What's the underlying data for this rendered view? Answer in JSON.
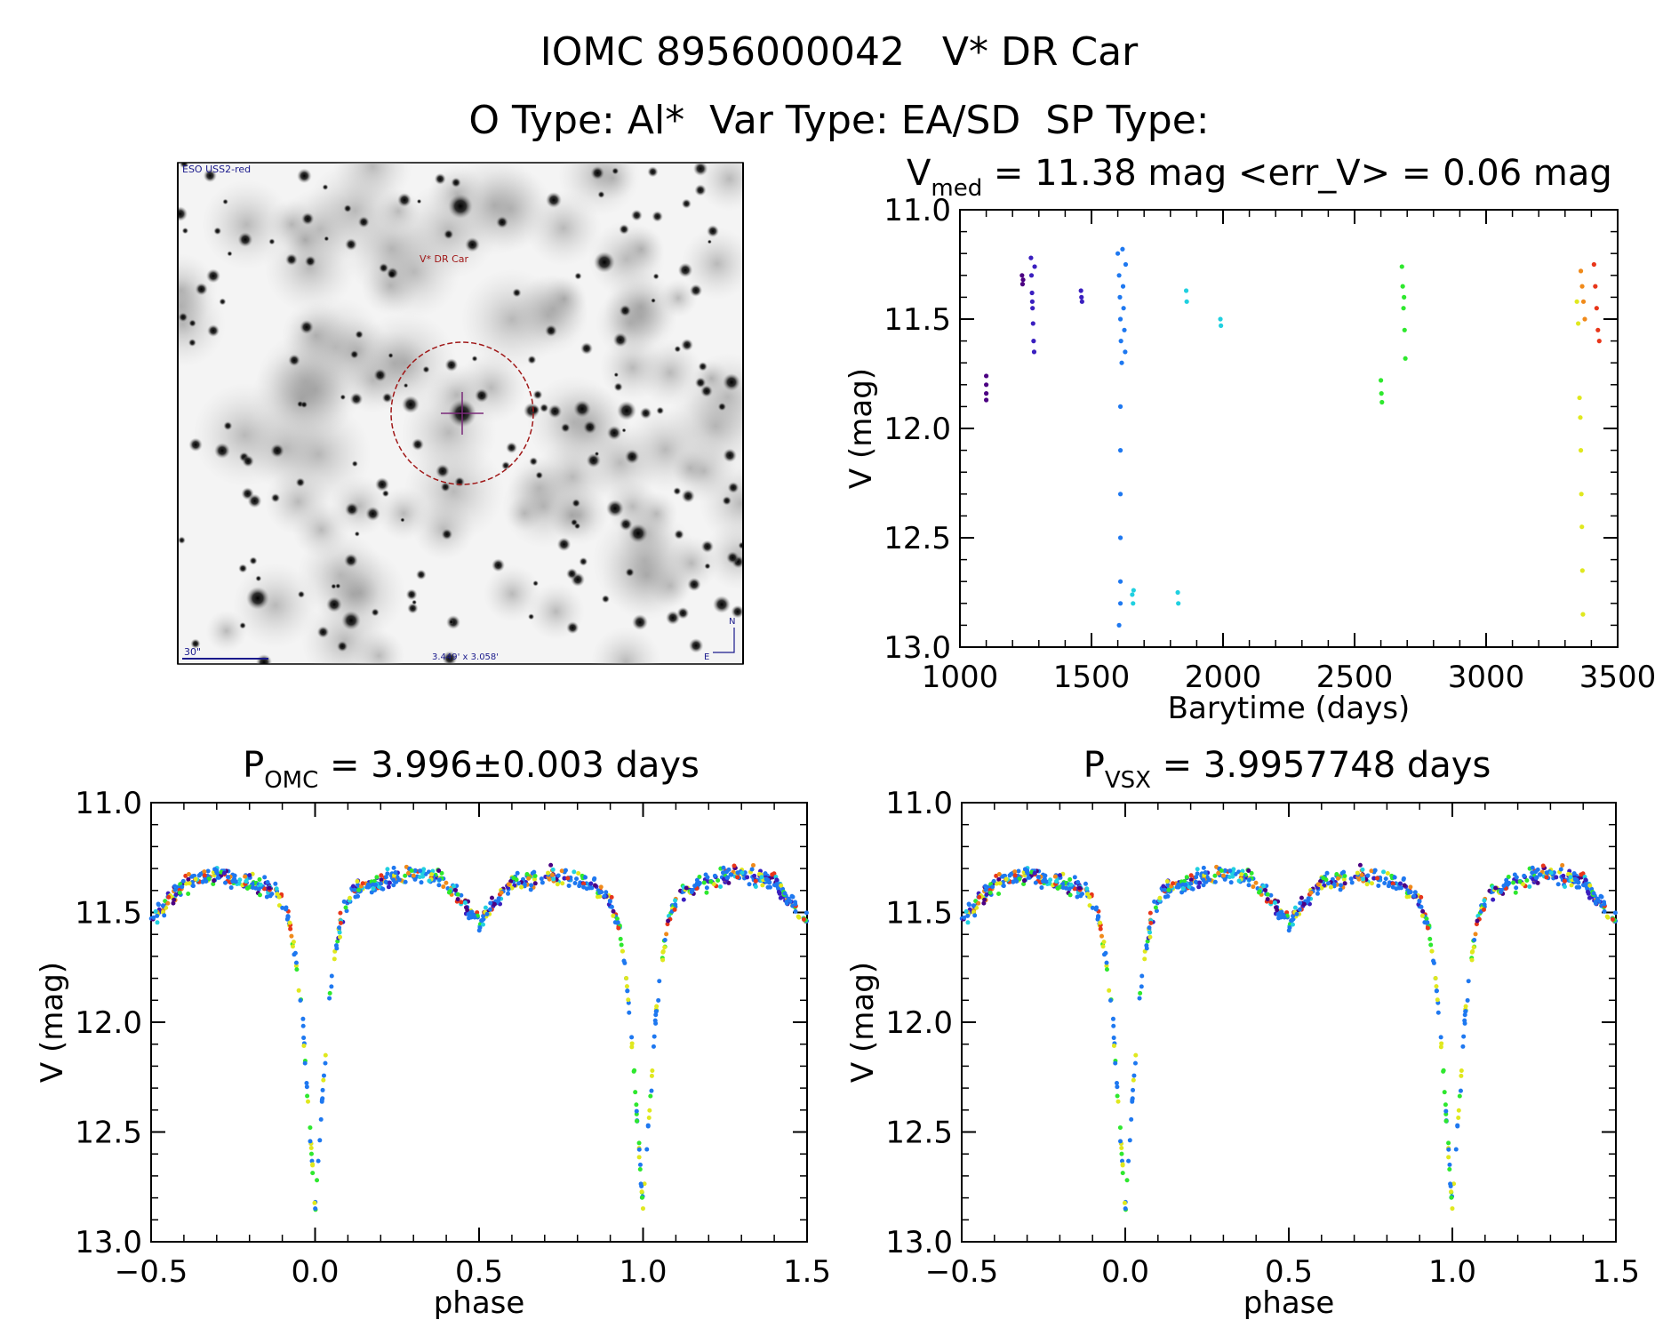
{
  "header": {
    "line1": "IOMC 8956000042   V* DR Car",
    "line2": "O Type: Al*  Var Type: EA/SD  SP Type:"
  },
  "finder": {
    "survey_label": "ESO USS2-red",
    "target_label": "V* DR Car",
    "scale_label": "30\"",
    "fov_label": "3.449' x 3.058'",
    "north_label": "N",
    "east_label": "E"
  },
  "colors": {
    "violet": "#4b0082",
    "indigo": "#3a1fbf",
    "blue": "#1e78f0",
    "cyan": "#20d0e0",
    "green": "#2ee82e",
    "yellow": "#e0e81e",
    "orange": "#f08a1a",
    "red": "#e8361a",
    "finder_marker": "#a01818",
    "finder_scale": "#1a1a8c"
  },
  "chart_data": [
    {
      "type": "scatter",
      "id": "light-curve",
      "title": "V_med = 11.38 mag <err_V> = 0.06 mag",
      "title_parts": {
        "v": "V",
        "med": "med",
        "rest": " = 11.38 mag <err_V> = 0.06 mag"
      },
      "xlabel": "Barytime (days)",
      "ylabel": "V (mag)",
      "xlim": [
        1000,
        3500
      ],
      "ylim": [
        13.0,
        11.0
      ],
      "xticks": [
        1000,
        1500,
        2000,
        2500,
        3000,
        3500
      ],
      "xtick_labels": [
        "1000",
        "1500",
        "2000",
        "2500",
        "3000",
        "3500"
      ],
      "yticks": [
        11.0,
        11.5,
        12.0,
        12.5,
        13.0
      ],
      "ytick_labels": [
        "11.0",
        "11.5",
        "12.0",
        "12.5",
        "13.0"
      ],
      "series": [
        {
          "name": "run-1100",
          "color": "violet",
          "points": [
            [
              1100,
              11.76
            ],
            [
              1100,
              11.8
            ],
            [
              1100,
              11.84
            ],
            [
              1100,
              11.87
            ]
          ]
        },
        {
          "name": "run-1240",
          "color": "violet",
          "points": [
            [
              1236,
              11.3
            ],
            [
              1238,
              11.34
            ],
            [
              1240,
              11.32
            ]
          ]
        },
        {
          "name": "run-1275",
          "color": "indigo",
          "points": [
            [
              1270,
              11.22
            ],
            [
              1272,
              11.3
            ],
            [
              1274,
              11.38
            ],
            [
              1276,
              11.45
            ],
            [
              1278,
              11.52
            ],
            [
              1280,
              11.6
            ],
            [
              1282,
              11.65
            ],
            [
              1284,
              11.26
            ],
            [
              1275,
              11.42
            ]
          ]
        },
        {
          "name": "run-1460",
          "color": "indigo",
          "points": [
            [
              1460,
              11.37
            ],
            [
              1462,
              11.4
            ],
            [
              1464,
              11.42
            ]
          ]
        },
        {
          "name": "run-1610",
          "color": "blue",
          "points": [
            [
              1600,
              11.2
            ],
            [
              1605,
              11.3
            ],
            [
              1608,
              11.4
            ],
            [
              1610,
              11.5
            ],
            [
              1612,
              11.6
            ],
            [
              1615,
              11.7
            ],
            [
              1618,
              11.18
            ],
            [
              1620,
              11.35
            ],
            [
              1622,
              11.45
            ],
            [
              1625,
              11.55
            ],
            [
              1628,
              11.65
            ],
            [
              1630,
              11.25
            ],
            [
              1610,
              11.9
            ],
            [
              1610,
              12.1
            ],
            [
              1610,
              12.3
            ],
            [
              1610,
              12.5
            ],
            [
              1610,
              12.7
            ],
            [
              1610,
              12.8
            ],
            [
              1605,
              12.9
            ]
          ]
        },
        {
          "name": "run-1660",
          "color": "cyan",
          "points": [
            [
              1655,
              12.76
            ],
            [
              1658,
              12.8
            ],
            [
              1660,
              12.74
            ]
          ]
        },
        {
          "name": "run-1830",
          "color": "cyan",
          "points": [
            [
              1828,
              12.75
            ],
            [
              1830,
              12.8
            ]
          ]
        },
        {
          "name": "run-1860",
          "color": "cyan",
          "points": [
            [
              1860,
              11.37
            ],
            [
              1862,
              11.42
            ]
          ]
        },
        {
          "name": "run-1990",
          "color": "cyan",
          "points": [
            [
              1990,
              11.5
            ],
            [
              1992,
              11.53
            ]
          ]
        },
        {
          "name": "run-2600",
          "color": "green",
          "points": [
            [
              2600,
              11.78
            ],
            [
              2602,
              11.84
            ],
            [
              2604,
              11.88
            ]
          ]
        },
        {
          "name": "run-2680",
          "color": "green",
          "points": [
            [
              2680,
              11.26
            ],
            [
              2683,
              11.35
            ],
            [
              2686,
              11.45
            ],
            [
              2690,
              11.55
            ],
            [
              2693,
              11.68
            ],
            [
              2688,
              11.4
            ]
          ]
        },
        {
          "name": "run-3350-y",
          "color": "yellow",
          "points": [
            [
              3345,
              11.42
            ],
            [
              3350,
              11.52
            ],
            [
              3355,
              11.86
            ],
            [
              3358,
              11.95
            ],
            [
              3360,
              12.1
            ],
            [
              3362,
              12.3
            ],
            [
              3364,
              12.45
            ],
            [
              3366,
              12.65
            ],
            [
              3368,
              12.85
            ]
          ]
        },
        {
          "name": "run-3370-o",
          "color": "orange",
          "points": [
            [
              3360,
              11.28
            ],
            [
              3365,
              11.35
            ],
            [
              3370,
              11.42
            ],
            [
              3375,
              11.5
            ]
          ]
        },
        {
          "name": "run-3420-r",
          "color": "red",
          "points": [
            [
              3410,
              11.25
            ],
            [
              3415,
              11.35
            ],
            [
              3420,
              11.45
            ],
            [
              3425,
              11.55
            ],
            [
              3430,
              11.6
            ]
          ]
        }
      ]
    },
    {
      "type": "scatter",
      "id": "phase-omc",
      "title": "P_OMC = 3.996±0.003 days",
      "title_parts": {
        "p": "P",
        "sub": "OMC",
        "rest": " = 3.996±0.003 days"
      },
      "xlabel": "phase",
      "ylabel": "V (mag)",
      "xlim": [
        -0.5,
        1.5
      ],
      "ylim": [
        13.0,
        11.0
      ],
      "xticks": [
        -0.5,
        0.0,
        0.5,
        1.0,
        1.5
      ],
      "xtick_labels": [
        "−0.5",
        "0.0",
        "0.5",
        "1.0",
        "1.5"
      ],
      "yticks": [
        11.0,
        11.5,
        12.0,
        12.5,
        13.0
      ],
      "ytick_labels": [
        "11.0",
        "11.5",
        "12.0",
        "12.5",
        "13.0"
      ],
      "profile": [
        [
          -0.5,
          11.55
        ],
        [
          -0.45,
          11.45
        ],
        [
          -0.4,
          11.37
        ],
        [
          -0.3,
          11.33
        ],
        [
          -0.2,
          11.36
        ],
        [
          -0.12,
          11.4
        ],
        [
          -0.08,
          11.52
        ],
        [
          -0.06,
          11.7
        ],
        [
          -0.04,
          11.95
        ],
        [
          -0.02,
          12.4
        ],
        [
          0.0,
          12.85
        ],
        [
          0.02,
          12.4
        ],
        [
          0.04,
          11.95
        ],
        [
          0.06,
          11.7
        ],
        [
          0.08,
          11.52
        ],
        [
          0.12,
          11.4
        ],
        [
          0.2,
          11.36
        ],
        [
          0.3,
          11.32
        ],
        [
          0.4,
          11.36
        ],
        [
          0.45,
          11.45
        ],
        [
          0.5,
          11.55
        ],
        [
          0.55,
          11.45
        ],
        [
          0.6,
          11.37
        ],
        [
          0.7,
          11.33
        ],
        [
          0.8,
          11.36
        ],
        [
          0.88,
          11.4
        ],
        [
          0.92,
          11.52
        ],
        [
          0.94,
          11.7
        ],
        [
          0.96,
          11.95
        ],
        [
          0.98,
          12.4
        ],
        [
          1.0,
          12.85
        ],
        [
          1.02,
          12.4
        ],
        [
          1.04,
          11.95
        ],
        [
          1.06,
          11.7
        ],
        [
          1.08,
          11.52
        ],
        [
          1.12,
          11.4
        ],
        [
          1.2,
          11.36
        ],
        [
          1.3,
          11.32
        ],
        [
          1.4,
          11.36
        ],
        [
          1.45,
          11.45
        ],
        [
          1.5,
          11.55
        ]
      ]
    },
    {
      "type": "scatter",
      "id": "phase-vsx",
      "title": "P_VSX = 3.9957748 days",
      "title_parts": {
        "p": "P",
        "sub": "VSX",
        "rest": " = 3.9957748 days"
      },
      "xlabel": "phase",
      "ylabel": "V (mag)",
      "xlim": [
        -0.5,
        1.5
      ],
      "ylim": [
        13.0,
        11.0
      ],
      "xticks": [
        -0.5,
        0.0,
        0.5,
        1.0,
        1.5
      ],
      "xtick_labels": [
        "−0.5",
        "0.0",
        "0.5",
        "1.0",
        "1.5"
      ],
      "yticks": [
        11.0,
        11.5,
        12.0,
        12.5,
        13.0
      ],
      "ytick_labels": [
        "11.0",
        "11.5",
        "12.0",
        "12.5",
        "13.0"
      ],
      "profile": [
        [
          -0.5,
          11.55
        ],
        [
          -0.45,
          11.45
        ],
        [
          -0.4,
          11.37
        ],
        [
          -0.3,
          11.33
        ],
        [
          -0.2,
          11.36
        ],
        [
          -0.12,
          11.4
        ],
        [
          -0.08,
          11.52
        ],
        [
          -0.06,
          11.7
        ],
        [
          -0.04,
          11.95
        ],
        [
          -0.02,
          12.4
        ],
        [
          0.0,
          12.85
        ],
        [
          0.02,
          12.4
        ],
        [
          0.04,
          11.95
        ],
        [
          0.06,
          11.7
        ],
        [
          0.08,
          11.52
        ],
        [
          0.12,
          11.4
        ],
        [
          0.2,
          11.36
        ],
        [
          0.3,
          11.32
        ],
        [
          0.4,
          11.36
        ],
        [
          0.45,
          11.45
        ],
        [
          0.5,
          11.55
        ],
        [
          0.55,
          11.45
        ],
        [
          0.6,
          11.37
        ],
        [
          0.7,
          11.33
        ],
        [
          0.8,
          11.36
        ],
        [
          0.88,
          11.4
        ],
        [
          0.92,
          11.52
        ],
        [
          0.94,
          11.7
        ],
        [
          0.96,
          11.95
        ],
        [
          0.98,
          12.4
        ],
        [
          1.0,
          12.85
        ],
        [
          1.02,
          12.4
        ],
        [
          1.04,
          11.95
        ],
        [
          1.06,
          11.7
        ],
        [
          1.08,
          11.52
        ],
        [
          1.12,
          11.4
        ],
        [
          1.2,
          11.36
        ],
        [
          1.3,
          11.32
        ],
        [
          1.4,
          11.36
        ],
        [
          1.45,
          11.45
        ],
        [
          1.5,
          11.55
        ]
      ]
    }
  ]
}
